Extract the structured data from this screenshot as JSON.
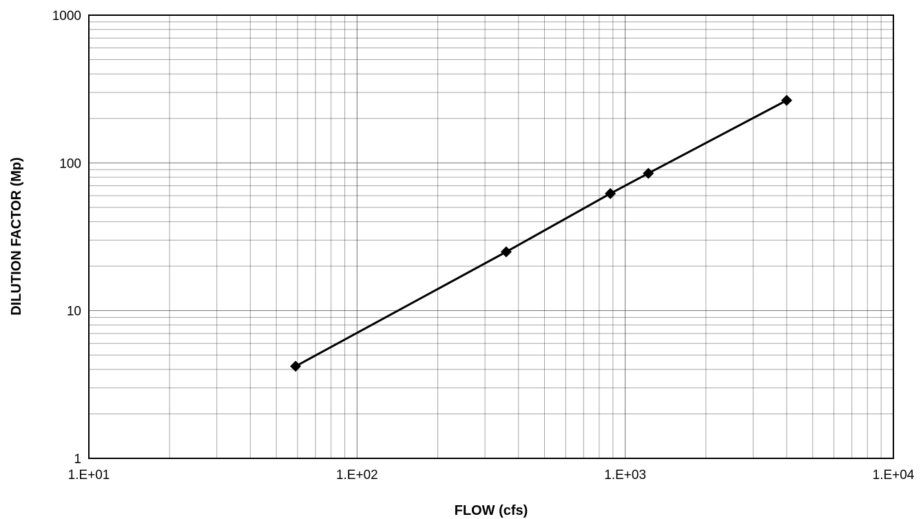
{
  "chart_data": {
    "type": "line",
    "title": "",
    "xlabel": "FLOW (cfs)",
    "ylabel": "DILUTION FACTOR (Mp)",
    "x_scale": "log",
    "y_scale": "log",
    "xlim": [
      10,
      10000
    ],
    "ylim": [
      1,
      1000
    ],
    "grid": true,
    "legend": "none",
    "x_tick_labels": [
      "1.E+01",
      "1.E+02",
      "1.E+03",
      "1.E+04"
    ],
    "y_tick_labels": [
      "1",
      "10",
      "100",
      "1000"
    ],
    "series": [
      {
        "x": [
          59,
          360,
          880,
          1220,
          4000
        ],
        "y": [
          4.2,
          25,
          62,
          85,
          265
        ]
      }
    ],
    "colors": {
      "line": "#000000",
      "grid": "#000000",
      "background": "#ffffff"
    }
  }
}
